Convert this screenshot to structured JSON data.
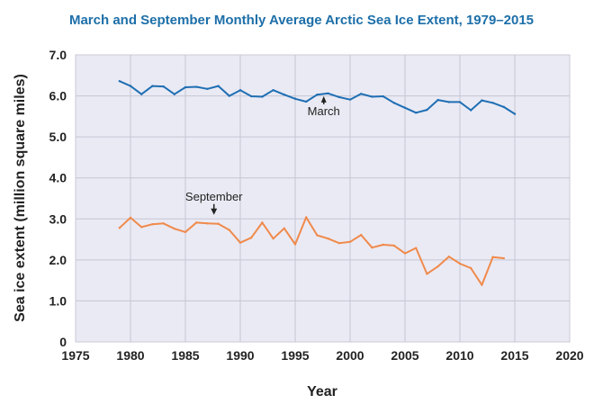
{
  "chart_data": {
    "type": "line",
    "title": "March and September Monthly Average Arctic Sea Ice Extent, 1979–2015",
    "xlabel": "Year",
    "ylabel": "Sea ice extent (million square miles)",
    "xlim": [
      1975,
      2020
    ],
    "ylim": [
      0,
      7.0
    ],
    "xticks": [
      1975,
      1980,
      1985,
      1990,
      1995,
      2000,
      2005,
      2010,
      2015,
      2020
    ],
    "yticks": [
      0,
      1.0,
      2.0,
      3.0,
      4.0,
      5.0,
      6.0,
      7.0
    ],
    "ytick_labels": [
      "0",
      "1.0",
      "2.0",
      "3.0",
      "4.0",
      "5.0",
      "6.0",
      "7.0"
    ],
    "grid": true,
    "series": [
      {
        "name": "March",
        "color": "#1f6fb4",
        "x": [
          1979,
          1980,
          1981,
          1982,
          1983,
          1984,
          1985,
          1986,
          1987,
          1988,
          1989,
          1990,
          1991,
          1992,
          1993,
          1994,
          1995,
          1996,
          1997,
          1998,
          1999,
          2000,
          2001,
          2002,
          2003,
          2004,
          2005,
          2006,
          2007,
          2008,
          2009,
          2010,
          2011,
          2012,
          2013,
          2014,
          2015
        ],
        "values": [
          6.36,
          6.24,
          6.04,
          6.24,
          6.23,
          6.04,
          6.21,
          6.22,
          6.17,
          6.24,
          6.0,
          6.14,
          5.99,
          5.98,
          6.14,
          6.03,
          5.93,
          5.86,
          6.03,
          6.06,
          5.97,
          5.91,
          6.05,
          5.98,
          5.99,
          5.83,
          5.71,
          5.59,
          5.66,
          5.9,
          5.85,
          5.85,
          5.65,
          5.89,
          5.83,
          5.73,
          5.56
        ],
        "annotation": {
          "text": "March",
          "x": 1997.6,
          "y": 5.62
        }
      },
      {
        "name": "September",
        "color": "#f08a4b",
        "x": [
          1979,
          1980,
          1981,
          1982,
          1983,
          1984,
          1985,
          1986,
          1987,
          1988,
          1989,
          1990,
          1991,
          1992,
          1993,
          1994,
          1995,
          1996,
          1997,
          1998,
          1999,
          2000,
          2001,
          2002,
          2003,
          2004,
          2005,
          2006,
          2007,
          2008,
          2009,
          2010,
          2011,
          2012,
          2013,
          2014
        ],
        "values": [
          2.78,
          3.03,
          2.8,
          2.87,
          2.89,
          2.76,
          2.68,
          2.91,
          2.89,
          2.88,
          2.73,
          2.42,
          2.54,
          2.91,
          2.52,
          2.77,
          2.38,
          3.04,
          2.6,
          2.52,
          2.41,
          2.44,
          2.61,
          2.3,
          2.37,
          2.35,
          2.16,
          2.29,
          1.66,
          1.84,
          2.08,
          1.91,
          1.8,
          1.39,
          2.07,
          2.04
        ],
        "annotation": {
          "text": "September",
          "x": 1987.6,
          "y": 3.45
        }
      }
    ]
  }
}
